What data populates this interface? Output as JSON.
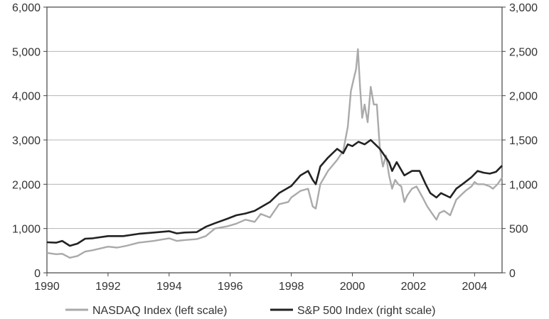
{
  "chart_data": {
    "type": "line",
    "title": "",
    "xlabel": "",
    "ylabel": "",
    "y2label": "",
    "xlim": [
      1990,
      2004.9
    ],
    "ylim": [
      0,
      6000
    ],
    "y2lim": [
      0,
      3000
    ],
    "grid": true,
    "legend_position": "bottom",
    "x_ticks": [
      {
        "value": 1990,
        "label": "1990"
      },
      {
        "value": 1992,
        "label": "1992"
      },
      {
        "value": 1994,
        "label": "1994"
      },
      {
        "value": 1996,
        "label": "1996"
      },
      {
        "value": 1998,
        "label": "1998"
      },
      {
        "value": 2000,
        "label": "2000"
      },
      {
        "value": 2002,
        "label": "2002"
      },
      {
        "value": 2004,
        "label": "2004"
      }
    ],
    "y_ticks": [
      {
        "value": 0,
        "label": "0"
      },
      {
        "value": 1000,
        "label": "1,000"
      },
      {
        "value": 2000,
        "label": "2,000"
      },
      {
        "value": 3000,
        "label": "3,000"
      },
      {
        "value": 4000,
        "label": "4,000"
      },
      {
        "value": 5000,
        "label": "5,000"
      },
      {
        "value": 6000,
        "label": "6,000"
      }
    ],
    "y2_ticks": [
      {
        "value": 0,
        "label": "0"
      },
      {
        "value": 500,
        "label": "500"
      },
      {
        "value": 1000,
        "label": "1,000"
      },
      {
        "value": 1500,
        "label": "1,500"
      },
      {
        "value": 2000,
        "label": "2,000"
      },
      {
        "value": 2500,
        "label": "2,500"
      },
      {
        "value": 3000,
        "label": "3,000"
      }
    ],
    "series": [
      {
        "name": "NASDAQ Index (left scale)",
        "axis": "left",
        "color": "#aaaaaa",
        "x": [
          1990.0,
          1990.3,
          1990.5,
          1990.75,
          1991.0,
          1991.25,
          1991.5,
          1992.0,
          1992.3,
          1992.6,
          1993.0,
          1993.5,
          1994.0,
          1994.25,
          1994.5,
          1994.9,
          1995.2,
          1995.5,
          1995.9,
          1996.2,
          1996.5,
          1996.8,
          1997.0,
          1997.3,
          1997.6,
          1997.9,
          1998.0,
          1998.3,
          1998.55,
          1998.7,
          1998.8,
          1998.95,
          1999.2,
          1999.5,
          1999.7,
          1999.85,
          1999.95,
          2000.05,
          2000.12,
          2000.18,
          2000.25,
          2000.32,
          2000.4,
          2000.5,
          2000.6,
          2000.7,
          2000.8,
          2000.9,
          2001.0,
          2001.1,
          2001.2,
          2001.3,
          2001.4,
          2001.5,
          2001.6,
          2001.7,
          2001.8,
          2001.95,
          2002.1,
          2002.3,
          2002.45,
          2002.6,
          2002.75,
          2002.85,
          2003.0,
          2003.2,
          2003.4,
          2003.55,
          2003.7,
          2003.9,
          2004.0,
          2004.1,
          2004.3,
          2004.5,
          2004.6,
          2004.75,
          2004.9
        ],
        "y": [
          450,
          420,
          430,
          340,
          380,
          480,
          510,
          590,
          570,
          610,
          680,
          720,
          780,
          720,
          740,
          760,
          830,
          1000,
          1050,
          1110,
          1200,
          1150,
          1330,
          1250,
          1550,
          1600,
          1700,
          1850,
          1900,
          1500,
          1450,
          2000,
          2300,
          2550,
          2750,
          3300,
          4100,
          4400,
          4600,
          5050,
          4200,
          3500,
          3800,
          3400,
          4200,
          3800,
          3800,
          2800,
          2400,
          2650,
          2200,
          1900,
          2100,
          2000,
          1950,
          1600,
          1750,
          1900,
          1950,
          1700,
          1500,
          1350,
          1200,
          1350,
          1400,
          1300,
          1650,
          1750,
          1850,
          1950,
          2050,
          2000,
          2000,
          1950,
          1900,
          2000,
          2150
        ]
      },
      {
        "name": "S&P 500 Index (right scale)",
        "axis": "right",
        "color": "#222222",
        "x": [
          1990.0,
          1990.3,
          1990.5,
          1990.75,
          1991.0,
          1991.25,
          1991.5,
          1992.0,
          1992.5,
          1993.0,
          1993.5,
          1994.0,
          1994.25,
          1994.5,
          1994.9,
          1995.2,
          1995.5,
          1995.9,
          1996.2,
          1996.5,
          1996.8,
          1997.0,
          1997.3,
          1997.6,
          1997.9,
          1998.0,
          1998.3,
          1998.55,
          1998.7,
          1998.8,
          1998.95,
          1999.2,
          1999.5,
          1999.7,
          1999.85,
          2000.0,
          2000.2,
          2000.4,
          2000.6,
          2000.75,
          2000.9,
          2001.0,
          2001.2,
          2001.3,
          2001.45,
          2001.7,
          2001.95,
          2002.2,
          2002.4,
          2002.55,
          2002.75,
          2002.9,
          2003.2,
          2003.4,
          2003.6,
          2003.9,
          2004.1,
          2004.3,
          2004.5,
          2004.7,
          2004.9
        ],
        "y": [
          345,
          340,
          360,
          305,
          330,
          385,
          390,
          415,
          415,
          440,
          455,
          470,
          445,
          455,
          460,
          520,
          560,
          610,
          650,
          670,
          700,
          740,
          800,
          900,
          960,
          980,
          1100,
          1150,
          1050,
          1000,
          1200,
          1300,
          1400,
          1350,
          1450,
          1430,
          1480,
          1450,
          1500,
          1450,
          1400,
          1350,
          1250,
          1150,
          1250,
          1100,
          1150,
          1150,
          1000,
          900,
          850,
          900,
          850,
          950,
          1000,
          1080,
          1150,
          1130,
          1120,
          1140,
          1210
        ]
      }
    ]
  }
}
